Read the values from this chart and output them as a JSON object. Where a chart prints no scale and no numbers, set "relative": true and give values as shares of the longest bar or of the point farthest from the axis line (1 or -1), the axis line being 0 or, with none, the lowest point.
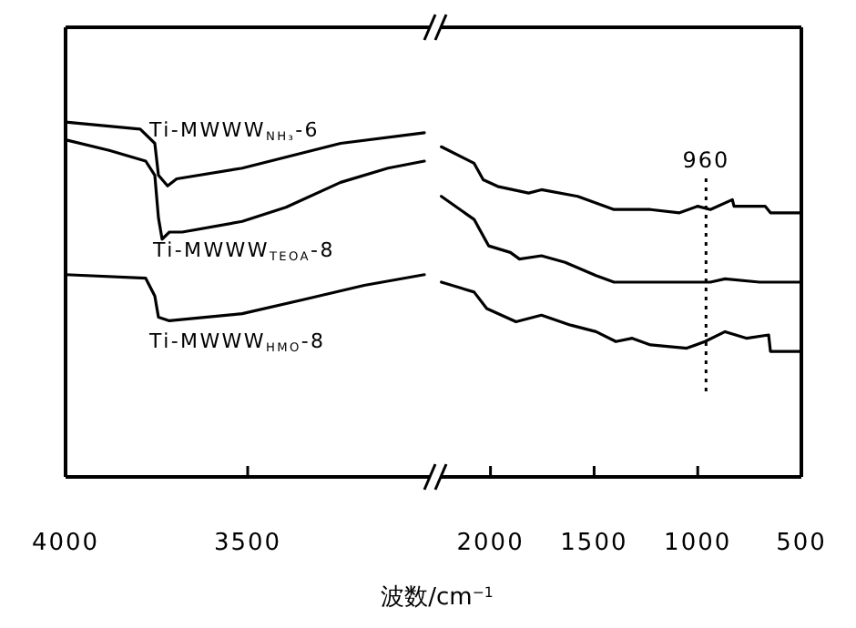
{
  "chart_data": [
    {
      "type": "line",
      "relative": true,
      "xlim": [
        4000,
        3000
      ],
      "xticks": [
        4000,
        3500
      ],
      "xlabel": "波数/cm$^{−1}$",
      "legend": false,
      "grid": false,
      "line_style": "solid",
      "marker": "none",
      "series": [
        {
          "name": "Ti-MWWW$_{NH₃}$-6",
          "color": "#000000",
          "x": [
            4000,
            3795,
            3755,
            3745,
            3720,
            3695,
            3515,
            3245,
            3015
          ],
          "values": [
            1.0,
            0.98,
            0.94,
            0.85,
            0.82,
            0.84,
            0.87,
            0.94,
            0.97
          ]
        },
        {
          "name": "Ti-MWWW$_{TEOA}$-8",
          "color": "#000000",
          "x": [
            4000,
            3880,
            3780,
            3755,
            3745,
            3735,
            3715,
            3680,
            3515,
            3395,
            3245,
            3115,
            3015
          ],
          "values": [
            0.95,
            0.92,
            0.89,
            0.85,
            0.73,
            0.67,
            0.69,
            0.69,
            0.72,
            0.76,
            0.83,
            0.87,
            0.89
          ]
        },
        {
          "name": "Ti-MWWW$_{HMO}$-8",
          "color": "#000000",
          "x": [
            4000,
            3780,
            3755,
            3745,
            3715,
            3515,
            3345,
            3180,
            3015
          ],
          "values": [
            0.57,
            0.56,
            0.51,
            0.45,
            0.44,
            0.46,
            0.5,
            0.54,
            0.57
          ]
        }
      ]
    },
    {
      "type": "line",
      "relative": true,
      "xlim": [
        2240,
        500
      ],
      "xticks": [
        2000,
        1500,
        1000,
        500
      ],
      "legend": false,
      "grid": false,
      "line_style": "solid",
      "marker": "none",
      "ref_lines": [
        {
          "axis": "x",
          "value": 960,
          "label": "960",
          "color": "#000000",
          "line_style": "dotted"
        }
      ],
      "series": [
        {
          "color": "#000000",
          "x": [
            2237,
            2079,
            2035,
            1965,
            1816,
            1754,
            1579,
            1404,
            1228,
            1088,
            1000,
            939,
            833,
            825,
            675,
            649,
            500
          ],
          "values": [
            1.0,
            0.95,
            0.9,
            0.88,
            0.86,
            0.87,
            0.85,
            0.81,
            0.81,
            0.8,
            0.82,
            0.81,
            0.84,
            0.82,
            0.82,
            0.8,
            0.8
          ]
        },
        {
          "color": "#000000",
          "x": [
            2237,
            2079,
            2009,
            1904,
            1860,
            1754,
            1640,
            1491,
            1404,
            1228,
            1053,
            939,
            868,
            702,
            500
          ],
          "values": [
            0.85,
            0.78,
            0.7,
            0.68,
            0.66,
            0.67,
            0.65,
            0.61,
            0.59,
            0.59,
            0.59,
            0.59,
            0.6,
            0.59,
            0.59
          ]
        },
        {
          "color": "#000000",
          "x": [
            2237,
            2079,
            2018,
            1877,
            1754,
            1614,
            1491,
            1395,
            1316,
            1228,
            1053,
            965,
            868,
            763,
            658,
            649,
            500
          ],
          "values": [
            0.59,
            0.56,
            0.51,
            0.47,
            0.49,
            0.46,
            0.44,
            0.41,
            0.42,
            0.4,
            0.39,
            0.41,
            0.44,
            0.42,
            0.43,
            0.38,
            0.38
          ]
        }
      ]
    }
  ]
}
